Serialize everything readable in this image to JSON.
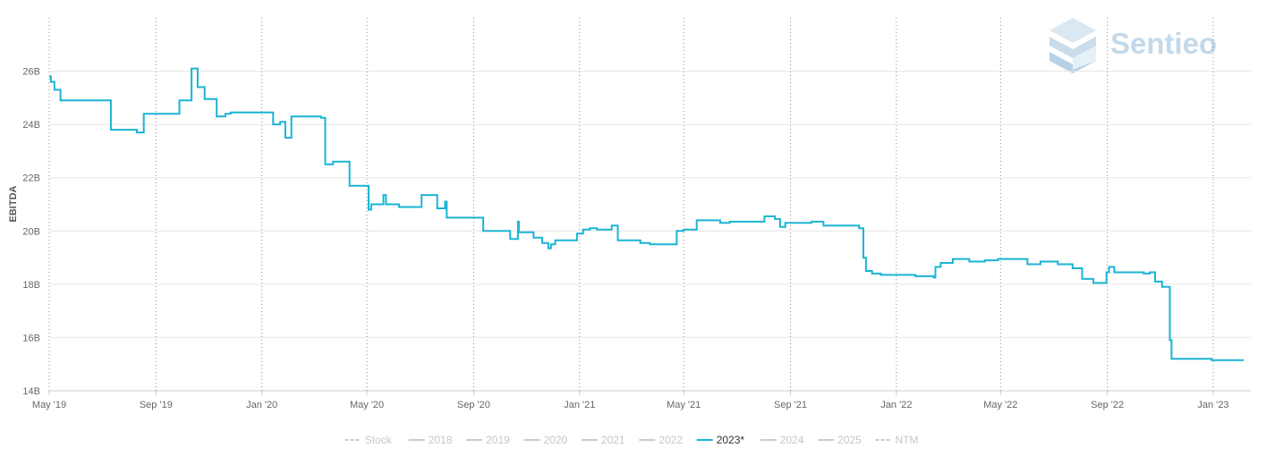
{
  "chart_data": {
    "type": "line",
    "ylabel": "EBITDA",
    "ylim": [
      14,
      28
    ],
    "y_ticks": [
      {
        "value": 14,
        "label": "14B"
      },
      {
        "value": 16,
        "label": "16B"
      },
      {
        "value": 18,
        "label": "18B"
      },
      {
        "value": 20,
        "label": "20B"
      },
      {
        "value": 22,
        "label": "22B"
      },
      {
        "value": 24,
        "label": "24B"
      },
      {
        "value": 26,
        "label": "26B"
      }
    ],
    "x_range": [
      "2019-05-01",
      "2023-02-05"
    ],
    "x_ticks": [
      {
        "date": "2019-05-01",
        "label": "May '19"
      },
      {
        "date": "2019-09-01",
        "label": "Sep '19"
      },
      {
        "date": "2020-01-01",
        "label": "Jan '20"
      },
      {
        "date": "2020-05-01",
        "label": "May '20"
      },
      {
        "date": "2020-09-01",
        "label": "Sep '20"
      },
      {
        "date": "2021-01-01",
        "label": "Jan '21"
      },
      {
        "date": "2021-05-01",
        "label": "May '21"
      },
      {
        "date": "2021-09-01",
        "label": "Sep '21"
      },
      {
        "date": "2022-01-01",
        "label": "Jan '22"
      },
      {
        "date": "2022-05-01",
        "label": "May '22"
      },
      {
        "date": "2022-09-01",
        "label": "Sep '22"
      },
      {
        "date": "2023-01-01",
        "label": "Jan '23"
      }
    ],
    "grid": {
      "horizontal": true,
      "vertical": "dotted"
    },
    "legend_position": "bottom-center",
    "series": [
      {
        "name": "2023*",
        "color": "#1ab4d4",
        "step": true,
        "points": [
          [
            "2019-05-01",
            25.8
          ],
          [
            "2019-05-03",
            25.6
          ],
          [
            "2019-05-07",
            25.3
          ],
          [
            "2019-05-14",
            24.9
          ],
          [
            "2019-07-11",
            23.8
          ],
          [
            "2019-08-10",
            23.7
          ],
          [
            "2019-08-18",
            24.4
          ],
          [
            "2019-09-14",
            24.4
          ],
          [
            "2019-09-28",
            24.9
          ],
          [
            "2019-10-12",
            26.1
          ],
          [
            "2019-10-19",
            25.4
          ],
          [
            "2019-10-27",
            24.95
          ],
          [
            "2019-11-10",
            24.3
          ],
          [
            "2019-11-20",
            24.4
          ],
          [
            "2019-11-26",
            24.45
          ],
          [
            "2020-01-14",
            24.0
          ],
          [
            "2020-01-22",
            24.1
          ],
          [
            "2020-01-28",
            23.5
          ],
          [
            "2020-02-04",
            24.3
          ],
          [
            "2020-03-09",
            24.25
          ],
          [
            "2020-03-14",
            22.5
          ],
          [
            "2020-03-23",
            22.6
          ],
          [
            "2020-04-11",
            21.7
          ],
          [
            "2020-05-03",
            20.8
          ],
          [
            "2020-05-06",
            21.0
          ],
          [
            "2020-05-20",
            21.35
          ],
          [
            "2020-05-23",
            21.0
          ],
          [
            "2020-06-07",
            20.9
          ],
          [
            "2020-07-03",
            21.35
          ],
          [
            "2020-07-21",
            20.85
          ],
          [
            "2020-07-30",
            21.1
          ],
          [
            "2020-08-01",
            20.5
          ],
          [
            "2020-09-12",
            20.0
          ],
          [
            "2020-10-13",
            19.7
          ],
          [
            "2020-10-22",
            20.35
          ],
          [
            "2020-10-23",
            19.95
          ],
          [
            "2020-11-09",
            19.75
          ],
          [
            "2020-11-19",
            19.55
          ],
          [
            "2020-11-26",
            19.35
          ],
          [
            "2020-11-29",
            19.5
          ],
          [
            "2020-12-04",
            19.65
          ],
          [
            "2020-12-29",
            19.9
          ],
          [
            "2021-01-05",
            20.05
          ],
          [
            "2021-01-13",
            20.1
          ],
          [
            "2021-01-21",
            20.05
          ],
          [
            "2021-02-07",
            20.2
          ],
          [
            "2021-02-14",
            19.65
          ],
          [
            "2021-03-12",
            19.55
          ],
          [
            "2021-03-23",
            19.5
          ],
          [
            "2021-04-23",
            20.0
          ],
          [
            "2021-05-01",
            20.05
          ],
          [
            "2021-05-16",
            20.4
          ],
          [
            "2021-06-01",
            20.4
          ],
          [
            "2021-06-12",
            20.3
          ],
          [
            "2021-06-23",
            20.35
          ],
          [
            "2021-07-19",
            20.35
          ],
          [
            "2021-08-02",
            20.55
          ],
          [
            "2021-08-14",
            20.45
          ],
          [
            "2021-08-20",
            20.15
          ],
          [
            "2021-08-26",
            20.3
          ],
          [
            "2021-09-25",
            20.35
          ],
          [
            "2021-10-09",
            20.2
          ],
          [
            "2021-11-19",
            20.1
          ],
          [
            "2021-11-24",
            19.0
          ],
          [
            "2021-11-27",
            18.5
          ],
          [
            "2021-12-04",
            18.4
          ],
          [
            "2021-12-14",
            18.35
          ],
          [
            "2022-01-23",
            18.3
          ],
          [
            "2022-02-13",
            18.25
          ],
          [
            "2022-02-15",
            18.65
          ],
          [
            "2022-02-21",
            18.8
          ],
          [
            "2022-03-07",
            18.95
          ],
          [
            "2022-03-26",
            18.85
          ],
          [
            "2022-04-13",
            18.9
          ],
          [
            "2022-04-28",
            18.95
          ],
          [
            "2022-05-22",
            18.95
          ],
          [
            "2022-06-01",
            18.75
          ],
          [
            "2022-06-16",
            18.85
          ],
          [
            "2022-07-06",
            18.75
          ],
          [
            "2022-07-23",
            18.6
          ],
          [
            "2022-08-03",
            18.2
          ],
          [
            "2022-08-16",
            18.05
          ],
          [
            "2022-08-31",
            18.45
          ],
          [
            "2022-09-03",
            18.65
          ],
          [
            "2022-09-09",
            18.45
          ],
          [
            "2022-10-13",
            18.4
          ],
          [
            "2022-10-20",
            18.45
          ],
          [
            "2022-10-26",
            18.1
          ],
          [
            "2022-11-03",
            17.9
          ],
          [
            "2022-11-12",
            15.9
          ],
          [
            "2022-11-14",
            15.2
          ],
          [
            "2022-12-08",
            15.2
          ],
          [
            "2022-12-15",
            15.2
          ],
          [
            "2022-12-30",
            15.15
          ],
          [
            "2023-02-05",
            15.15
          ]
        ]
      }
    ],
    "legend": [
      {
        "label": "Stock",
        "style": "dashed",
        "active": false
      },
      {
        "label": "2018",
        "style": "solid",
        "active": false
      },
      {
        "label": "2019",
        "style": "solid",
        "active": false
      },
      {
        "label": "2020",
        "style": "solid",
        "active": false
      },
      {
        "label": "2021",
        "style": "solid",
        "active": false
      },
      {
        "label": "2022",
        "style": "solid",
        "active": false
      },
      {
        "label": "2023*",
        "style": "solid",
        "active": true
      },
      {
        "label": "2024",
        "style": "solid",
        "active": false
      },
      {
        "label": "2025",
        "style": "solid",
        "active": false
      },
      {
        "label": "NTM",
        "style": "dashed",
        "active": false
      }
    ]
  },
  "watermark": {
    "text": "Sentieo",
    "color": "#c3d9ea"
  },
  "colors": {
    "line": "#1ab4d4",
    "grid": "#e6e6e6",
    "vgrid": "#8c8c8c",
    "legend_inactive": "#cccccc",
    "legend_active_text": "#333333"
  }
}
